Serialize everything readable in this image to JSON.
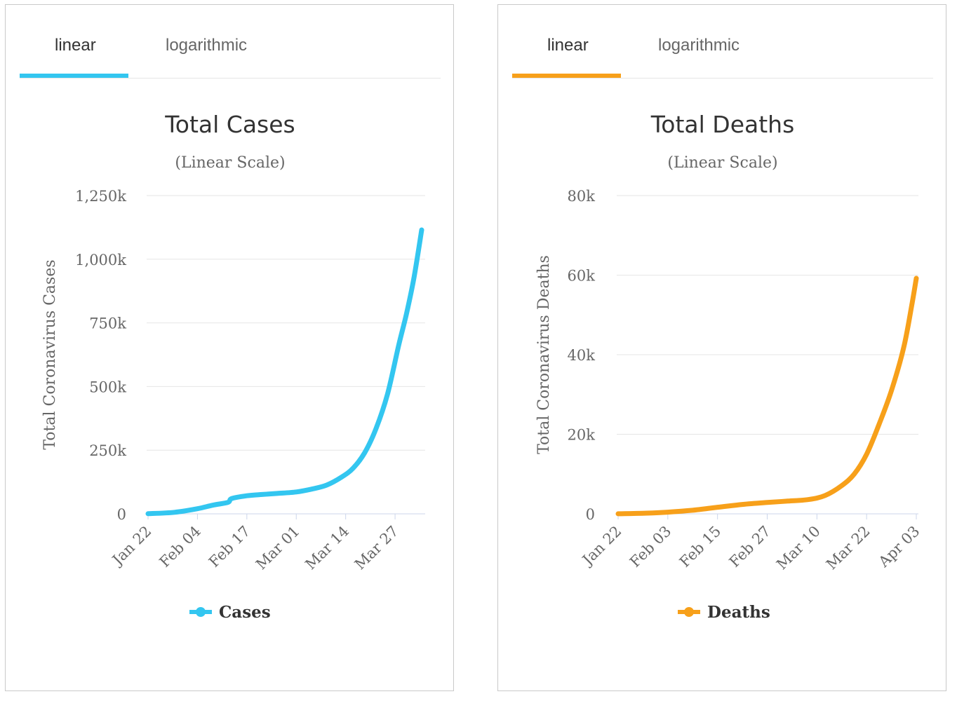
{
  "colors": {
    "cases": "#33c6f0",
    "deaths": "#f7a01a"
  },
  "panels": {
    "cases": {
      "tab_linear": "linear",
      "tab_log": "logarithmic"
    },
    "deaths": {
      "tab_linear": "linear",
      "tab_log": "logarithmic"
    }
  },
  "chart_data": [
    {
      "type": "line",
      "title": "Total Cases",
      "subtitle": "(Linear Scale)",
      "ylabel": "Total Coronavirus Cases",
      "xlabel": "",
      "ylim": [
        0,
        1250000
      ],
      "y_ticks": [
        0,
        250000,
        500000,
        750000,
        1000000,
        1250000
      ],
      "y_tick_labels": [
        "0",
        "250k",
        "500k",
        "750k",
        "1,000k",
        "1,250k"
      ],
      "x_tick_labels": [
        "Jan 22",
        "Feb 04",
        "Feb 17",
        "Mar 01",
        "Mar 14",
        "Mar 27"
      ],
      "x_start": "Jan 22",
      "x_end": "Apr 03",
      "grid": true,
      "legend": "bottom",
      "series": [
        {
          "name": "Cases",
          "x": [
            "Jan 22",
            "Jan 29",
            "Feb 04",
            "Feb 08",
            "Feb 12",
            "Feb 13",
            "Feb 17",
            "Feb 21",
            "Feb 25",
            "Mar 01",
            "Mar 05",
            "Mar 09",
            "Mar 13",
            "Mar 16",
            "Mar 19",
            "Mar 22",
            "Mar 25",
            "Mar 28",
            "Mar 30",
            "Apr 01",
            "Apr 03"
          ],
          "values": [
            580,
            6000,
            20000,
            34000,
            45000,
            60000,
            71000,
            76000,
            80000,
            86000,
            97000,
            113000,
            145000,
            180000,
            240000,
            335000,
            470000,
            665000,
            785000,
            930000,
            1115000
          ]
        }
      ]
    },
    {
      "type": "line",
      "title": "Total Deaths",
      "subtitle": "(Linear Scale)",
      "ylabel": "Total Coronavirus Deaths",
      "xlabel": "",
      "ylim": [
        0,
        80000
      ],
      "y_ticks": [
        0,
        20000,
        40000,
        60000,
        80000
      ],
      "y_tick_labels": [
        "0",
        "20k",
        "40k",
        "60k",
        "80k"
      ],
      "x_tick_labels": [
        "Jan 22",
        "Feb 03",
        "Feb 15",
        "Feb 27",
        "Mar 10",
        "Mar 22",
        "Apr 03"
      ],
      "x_start": "Jan 22",
      "x_end": "Apr 03",
      "grid": true,
      "legend": "bottom",
      "series": [
        {
          "name": "Deaths",
          "x": [
            "Jan 22",
            "Jan 29",
            "Feb 03",
            "Feb 09",
            "Feb 15",
            "Feb 21",
            "Feb 27",
            "Mar 03",
            "Mar 08",
            "Mar 12",
            "Mar 16",
            "Mar 19",
            "Mar 22",
            "Mar 25",
            "Mar 28",
            "Mar 31",
            "Apr 02",
            "Apr 03"
          ],
          "values": [
            17,
            170,
            430,
            900,
            1650,
            2360,
            2860,
            3200,
            3600,
            4620,
            7100,
            10000,
            15000,
            22500,
            31000,
            42000,
            53000,
            59200
          ]
        }
      ]
    }
  ]
}
